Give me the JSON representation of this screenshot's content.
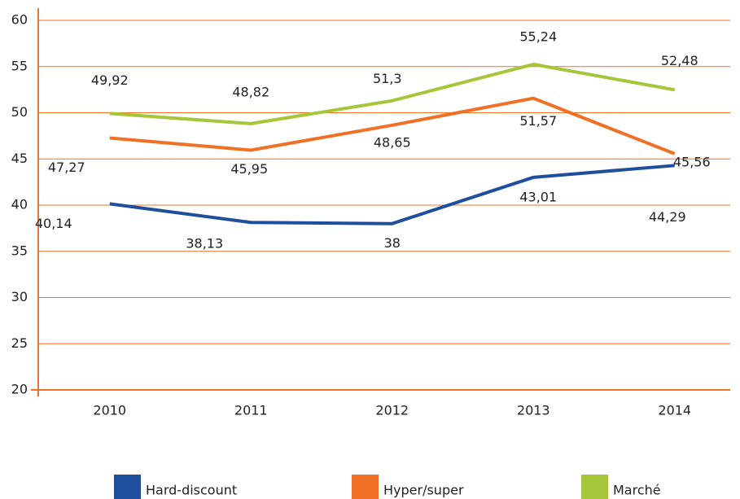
{
  "chart_data": {
    "type": "line",
    "categories": [
      "2010",
      "2011",
      "2012",
      "2013",
      "2014"
    ],
    "series": [
      {
        "name": "Hard-discount",
        "color": "#1f4e9c",
        "values": [
          40.14,
          38.13,
          38,
          43.01,
          44.29
        ],
        "value_labels": [
          "40,14",
          "38,13",
          "38",
          "43,01",
          "44,29"
        ]
      },
      {
        "name": "Hyper/super",
        "color": "#f07025",
        "values": [
          47.27,
          45.95,
          48.65,
          51.57,
          45.56
        ],
        "value_labels": [
          "47,27",
          "45,95",
          "48,65",
          "51,57",
          "45,56"
        ]
      },
      {
        "name": "Marché",
        "color": "#a6c639",
        "values": [
          49.92,
          48.82,
          51.3,
          55.24,
          52.48
        ],
        "value_labels": [
          "49,92",
          "48,82",
          "51,3",
          "55,24",
          "52,48"
        ]
      }
    ],
    "ylim": [
      20,
      60
    ],
    "yticks": [
      20,
      25,
      30,
      35,
      40,
      45,
      50,
      55,
      60
    ],
    "grid": true,
    "grid_color": "#f07025",
    "legend": "bottom"
  }
}
